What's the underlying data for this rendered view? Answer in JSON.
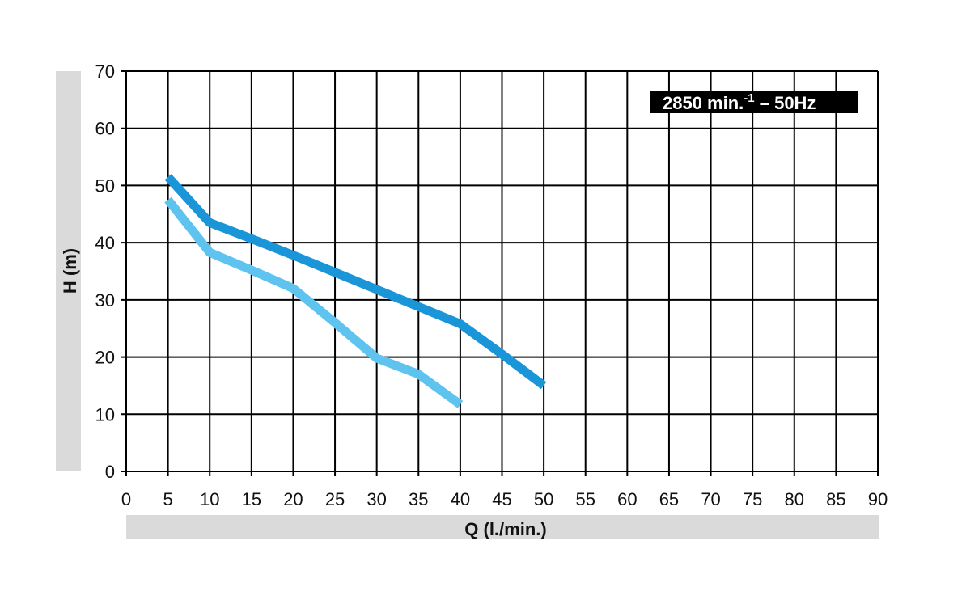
{
  "chart_data": {
    "type": "line",
    "xlabel": "Q (l./min.)",
    "ylabel": "H (m)",
    "xlim": [
      0,
      90
    ],
    "ylim": [
      0,
      70
    ],
    "xticks": [
      "0",
      "5",
      "10",
      "15",
      "20",
      "25",
      "30",
      "35",
      "40",
      "45",
      "50",
      "55",
      "60",
      "65",
      "70",
      "75",
      "80",
      "85",
      "90"
    ],
    "yticks": [
      "0",
      "10",
      "20",
      "30",
      "40",
      "50",
      "60",
      "70"
    ],
    "grid": true,
    "annotation": {
      "text_main": "2850 min.",
      "text_sup": "-1",
      "text_tail": " – 50Hz",
      "position": "top-right"
    },
    "series": [
      {
        "color": "#1a96d8",
        "points": [
          [
            5,
            51.5
          ],
          [
            10,
            43.5
          ],
          [
            15,
            40.7
          ],
          [
            20,
            37.8
          ],
          [
            25,
            34.8
          ],
          [
            30,
            31.8
          ],
          [
            35,
            28.8
          ],
          [
            40,
            25.8
          ],
          [
            45,
            20.5
          ],
          [
            50,
            15
          ]
        ]
      },
      {
        "color": "#5ec3ef",
        "points": [
          [
            5,
            47.5
          ],
          [
            10,
            38.3
          ],
          [
            15,
            35.2
          ],
          [
            20,
            32
          ],
          [
            25,
            26
          ],
          [
            30,
            19.8
          ],
          [
            35,
            17
          ],
          [
            40,
            11.7
          ]
        ]
      }
    ],
    "colors": {
      "axis_band": "#dadada",
      "grid": "#000000",
      "annotation_bg": "#000000"
    }
  }
}
